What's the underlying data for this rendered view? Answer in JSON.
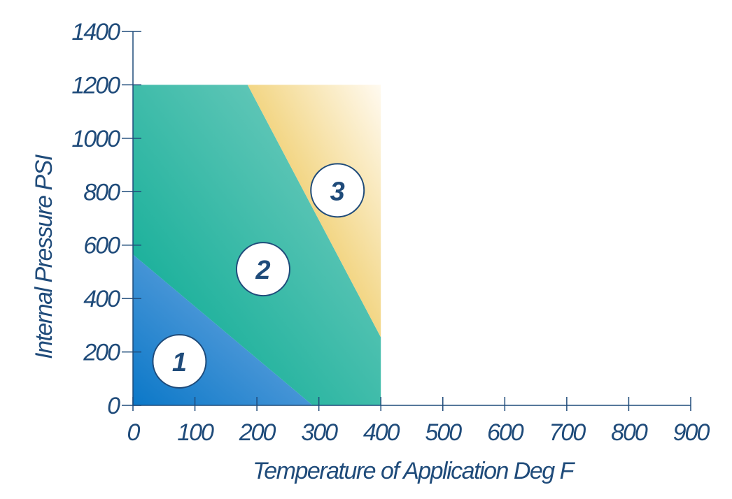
{
  "chart_data": {
    "type": "area",
    "xlabel": "Temperature of Application Deg F",
    "ylabel": "Internal Pressure PSI",
    "xlim": [
      0,
      900
    ],
    "ylim": [
      0,
      1400
    ],
    "x_ticks": [
      0,
      100,
      200,
      300,
      400,
      500,
      600,
      700,
      800,
      900
    ],
    "y_ticks": [
      0,
      200,
      400,
      600,
      800,
      1000,
      1200,
      1400
    ],
    "grid": false,
    "zones": [
      {
        "label": "1",
        "polygon": [
          [
            0,
            0
          ],
          [
            0,
            565
          ],
          [
            290,
            0
          ]
        ],
        "label_at": [
          75,
          165
        ],
        "colors": [
          "#0b78c8",
          "#7fb0e4"
        ]
      },
      {
        "label": "2",
        "polygon": [
          [
            0,
            565
          ],
          [
            0,
            1200
          ],
          [
            185,
            1200
          ],
          [
            400,
            255
          ],
          [
            400,
            0
          ],
          [
            290,
            0
          ]
        ],
        "label_at": [
          210,
          510
        ],
        "colors": [
          "#00a890",
          "#7fd0c4"
        ]
      },
      {
        "label": "3",
        "polygon": [
          [
            185,
            1200
          ],
          [
            400,
            1200
          ],
          [
            400,
            255
          ]
        ],
        "label_at": [
          330,
          805
        ],
        "colors": [
          "#e6b21a",
          "#fffaf0"
        ]
      }
    ]
  },
  "colors": {
    "axis": "#1f4b7a",
    "text": "#1f4b7a",
    "label_circle_fill": "#ffffff"
  }
}
